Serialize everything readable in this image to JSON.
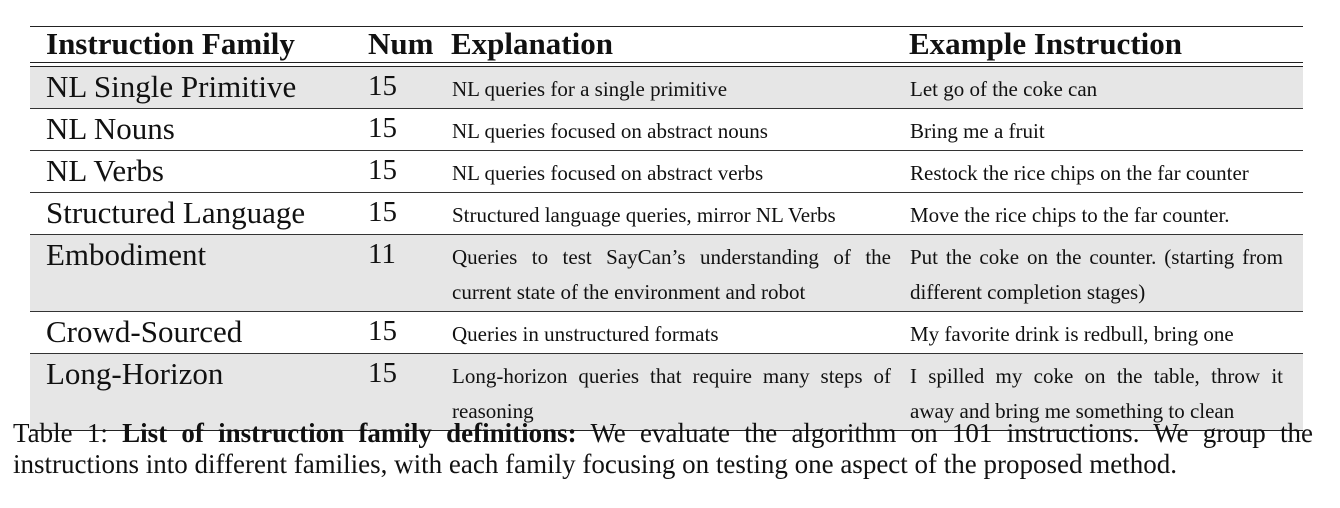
{
  "table": {
    "headers": {
      "family": "Instruction Family",
      "num": "Num",
      "explanation": "Explanation",
      "example": "Example Instruction"
    },
    "rows": [
      {
        "family": "NL Single Primitive",
        "num": "15",
        "explanation": "NL queries for a single primitive",
        "example": "Let go of the coke can"
      },
      {
        "family": "NL Nouns",
        "num": "15",
        "explanation": "NL queries focused on abstract nouns",
        "example": "Bring me a fruit"
      },
      {
        "family": "NL Verbs",
        "num": "15",
        "explanation": "NL queries focused on abstract verbs",
        "example": "Restock the rice chips on the far counter"
      },
      {
        "family": "Structured Language",
        "num": "15",
        "explanation": "Structured language queries, mirror NL Verbs",
        "example": "Move the rice chips to the far counter."
      },
      {
        "family": "Embodiment",
        "num": "11",
        "explanation": "Queries to test SayCan’s understanding of the current state of the environment and robot",
        "example": "Put the coke on the counter. (starting from different completion stages)"
      },
      {
        "family": "Crowd-Sourced",
        "num": "15",
        "explanation": "Queries in unstructured formats",
        "example": "My favorite drink is redbull, bring one"
      },
      {
        "family": "Long-Horizon",
        "num": "15",
        "explanation": "Long-horizon queries that require many steps of reasoning",
        "example": "I spilled my coke on the table, throw it away and bring me something to clean"
      }
    ]
  },
  "caption": {
    "label": "Table 1:",
    "bold": "List of instruction family definitions:",
    "text": "We evaluate the algorithm on 101 instructions. We group the instructions into different families, with each family focusing on testing one aspect of the proposed method."
  }
}
